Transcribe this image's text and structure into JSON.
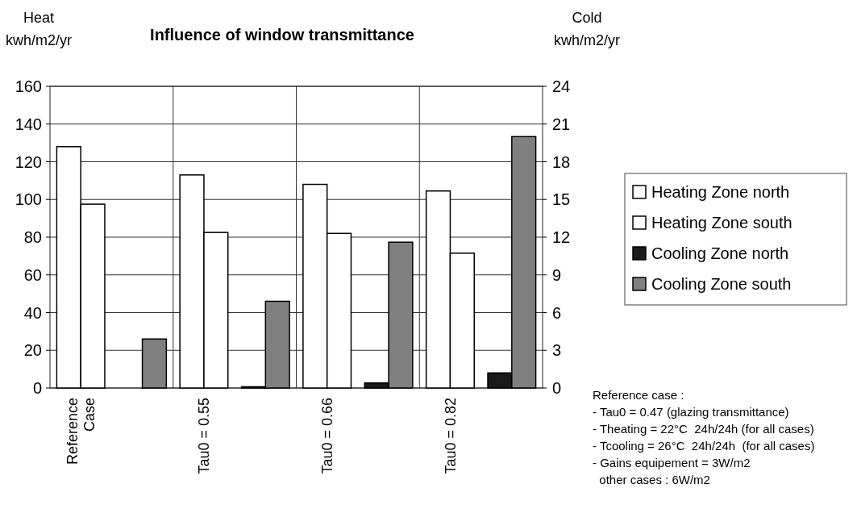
{
  "chart_data": {
    "type": "bar",
    "title": "Influence of window transmittance",
    "ylabel": "Heat\nkwh/m2/yr",
    "y2label": "Cold\nkwh/m2/yr",
    "categories": [
      "Reference\nCase",
      null,
      "Tau0 = 0.55",
      null,
      "Tau0 = 0.66",
      null,
      "Tau0 = 0.82",
      null
    ],
    "series": [
      {
        "name": "Heating Zone north",
        "color": "#ffffff",
        "values": [
          128,
          null,
          113,
          null,
          108,
          null,
          104.5,
          null
        ]
      },
      {
        "name": "Heating Zone south",
        "color": "#ffffff",
        "values": [
          97.5,
          null,
          82.5,
          null,
          82,
          null,
          71.5,
          null
        ]
      },
      {
        "name": "Cooling Zone north",
        "color": "#1a1a1a",
        "axis": "y2",
        "values": [
          null,
          0,
          null,
          0.1,
          null,
          0.4,
          null,
          1.2
        ]
      },
      {
        "name": "Cooling Zone south",
        "color": "#808080",
        "axis": "y2",
        "values": [
          null,
          3.9,
          null,
          6.9,
          null,
          11.6,
          null,
          20
        ]
      }
    ],
    "ylim": [
      0,
      160
    ],
    "yticks": [
      0,
      20,
      40,
      60,
      80,
      100,
      120,
      140,
      160
    ],
    "y2lim": [
      0,
      24
    ],
    "y2ticks": [
      0,
      3,
      6,
      9,
      12,
      15,
      18,
      21,
      24
    ],
    "grid": true,
    "legend": "right",
    "annotations": [
      "Reference case :",
      "- Tau0 = 0.47 (glazing transmittance)",
      "- Theating = 22°C  24h/24h (for all cases)",
      "- Tcooling = 26°C  24h/24h  (for all cases)",
      "- Gains equipement = 3W/m2",
      "  other cases : 6W/m2"
    ]
  }
}
